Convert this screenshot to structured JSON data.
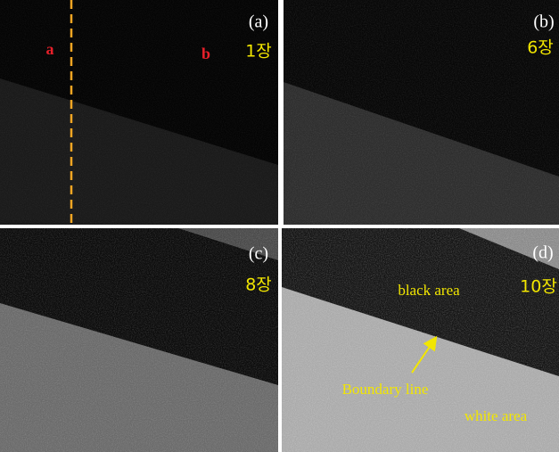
{
  "panels": [
    {
      "label": "(a)",
      "count": "1장",
      "markers": [
        "a",
        "b"
      ]
    },
    {
      "label": "(b)",
      "count": "6장"
    },
    {
      "label": "(c)",
      "count": "8장"
    },
    {
      "label": "(d)",
      "count": "10장",
      "annotations": [
        "black area",
        "Boundary line",
        "white area"
      ]
    }
  ]
}
